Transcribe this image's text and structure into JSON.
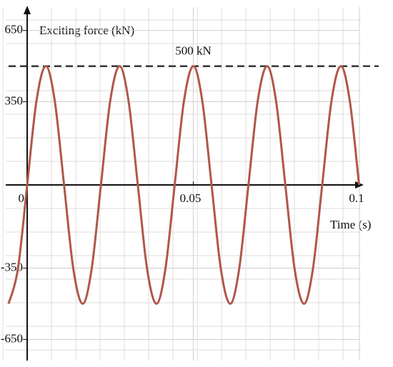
{
  "chart_data": {
    "type": "line",
    "y_label": "Exciting force (kN)",
    "x_label": "Time (s)",
    "x": [
      -0.0056,
      -0.0028,
      0,
      0.0028,
      0.0056,
      0.0083,
      0.0111,
      0.0139,
      0.0167,
      0.0194,
      0.0222,
      0.025,
      0.0278,
      0.0305,
      0.0333,
      0.0361,
      0.0389,
      0.0416,
      0.0444,
      0.0472,
      0.05,
      0.0527,
      0.0555,
      0.0583,
      0.0611,
      0.0638,
      0.0666,
      0.0694,
      0.0722,
      0.0749,
      0.0777,
      0.0805,
      0.0833,
      0.086,
      0.0888,
      0.0916,
      0.0944,
      0.0971,
      0.0999
    ],
    "series": [
      {
        "color": "#b0574a",
        "values": [
          -500,
          -354,
          0,
          354,
          500,
          354,
          0,
          -354,
          -500,
          -354,
          0,
          354,
          500,
          354,
          0,
          -354,
          -500,
          -354,
          0,
          354,
          500,
          354,
          0,
          -354,
          -500,
          -354,
          0,
          354,
          500,
          354,
          0,
          -354,
          -500,
          -354,
          0,
          354,
          500,
          354,
          0
        ]
      }
    ],
    "xlim": [
      -0.0056,
      0.1
    ],
    "ylim": [
      -700,
      700
    ],
    "xticks": [
      0,
      0.05,
      0.1
    ],
    "yticks": [
      -650,
      -350,
      350,
      650
    ],
    "reference_line": {
      "value": 500,
      "label": "500 kN"
    },
    "grid": true
  }
}
